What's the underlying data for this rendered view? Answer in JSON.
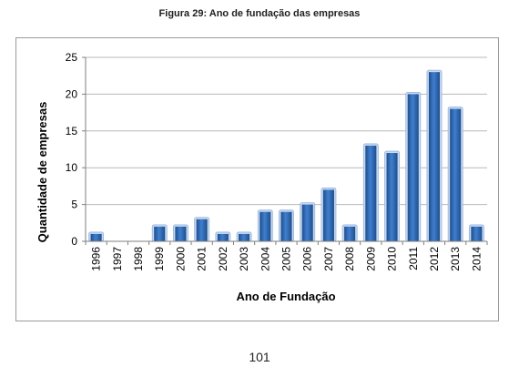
{
  "figure": {
    "title": "Figura 29: Ano de fundação das empresas",
    "page_number": "101"
  },
  "colors": {
    "bar_dark": "#1f4e8c",
    "bar_mid": "#3f7fcf",
    "bar_light": "#8fb4e3",
    "bar_outline": "#c9d9ee",
    "grid": "#b8b8b8",
    "axis": "#7f7f7f"
  },
  "chart_data": {
    "type": "bar",
    "title": "",
    "xlabel": "Ano de Fundação",
    "ylabel": "Quantidade de empresas",
    "categories": [
      "1996",
      "1997",
      "1998",
      "1999",
      "2000",
      "2001",
      "2002",
      "2003",
      "2004",
      "2005",
      "2006",
      "2007",
      "2008",
      "2009",
      "2010",
      "2011",
      "2012",
      "2013",
      "2014"
    ],
    "values": [
      1,
      0,
      0,
      2,
      2,
      3,
      1,
      1,
      4,
      4,
      5,
      7,
      2,
      13,
      12,
      20,
      23,
      18,
      2
    ],
    "ylim": [
      0,
      25
    ],
    "yticks": [
      0,
      5,
      10,
      15,
      20,
      25
    ],
    "grid": true,
    "legend": "none"
  }
}
